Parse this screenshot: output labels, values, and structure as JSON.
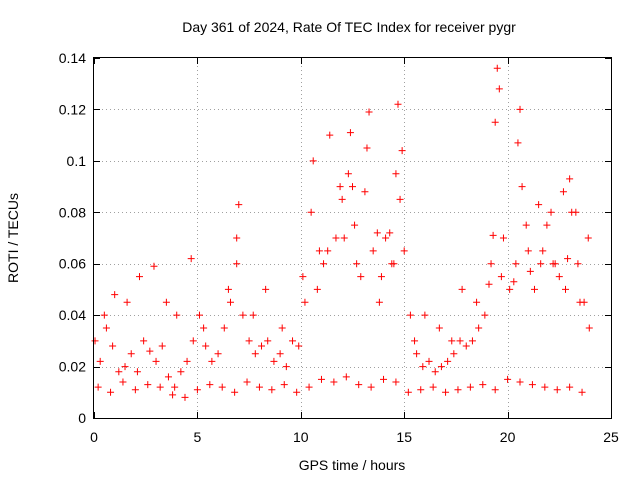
{
  "chart_data": {
    "type": "scatter",
    "title": "Day 361 of 2024, Rate Of TEC Index for receiver pygr",
    "xlabel": "GPS time / hours",
    "ylabel": "ROTI / TECUs",
    "xlim": [
      0,
      25
    ],
    "ylim": [
      0,
      0.14
    ],
    "xticks": [
      0,
      5,
      10,
      15,
      20,
      25
    ],
    "xtick_labels": [
      "0",
      "5",
      "10",
      "15",
      "20",
      "25"
    ],
    "yticks": [
      0,
      0.02,
      0.04,
      0.06,
      0.08,
      0.1,
      0.12,
      0.14
    ],
    "ytick_labels": [
      "0",
      "0.02",
      "0.04",
      "0.06",
      "0.08",
      "0.1",
      "0.12",
      "0.14"
    ],
    "grid": true,
    "marker": "+",
    "color": "#ff0000",
    "series": [
      {
        "name": "ROTI",
        "x": [
          0.05,
          0.3,
          0.6,
          0.9,
          1.2,
          1.5,
          1.8,
          2.1,
          2.4,
          2.7,
          3.0,
          3.3,
          3.6,
          3.9,
          4.2,
          4.5,
          4.8,
          5.1,
          5.4,
          5.7,
          6.0,
          6.3,
          6.6,
          6.9,
          7.0,
          7.2,
          7.5,
          7.8,
          8.1,
          8.4,
          8.7,
          9.0,
          9.3,
          9.6,
          9.9,
          10.2,
          10.5,
          10.6,
          10.8,
          11.1,
          11.4,
          11.7,
          12.0,
          12.3,
          12.4,
          12.6,
          12.9,
          13.2,
          13.3,
          13.5,
          13.8,
          14.1,
          14.4,
          14.6,
          14.7,
          14.8,
          15.0,
          15.3,
          15.6,
          15.9,
          16.2,
          16.5,
          16.8,
          17.1,
          17.4,
          17.7,
          18.0,
          18.3,
          18.6,
          18.9,
          19.2,
          19.4,
          19.5,
          19.6,
          19.8,
          20.1,
          20.4,
          20.5,
          20.6,
          20.7,
          21.0,
          21.3,
          21.6,
          21.9,
          22.2,
          22.5,
          22.8,
          23.0,
          23.1,
          23.4,
          23.7,
          23.95,
          0.2,
          0.8,
          1.4,
          2.0,
          2.6,
          3.2,
          3.8,
          4.4,
          5.0,
          5.6,
          6.2,
          6.8,
          7.4,
          8.0,
          8.6,
          9.2,
          9.8,
          10.4,
          11.0,
          11.6,
          12.2,
          12.8,
          13.4,
          14.0,
          14.6,
          15.2,
          15.8,
          16.4,
          17.0,
          17.6,
          18.2,
          18.8,
          19.4,
          20.0,
          20.6,
          21.2,
          21.8,
          22.4,
          23.0,
          23.6,
          0.5,
          1.6,
          2.9,
          4.7,
          6.9,
          8.3,
          10.9,
          11.9,
          12.5,
          13.1,
          13.7,
          14.3,
          14.9,
          16.0,
          17.8,
          19.3,
          20.9,
          21.5,
          22.1,
          22.7,
          23.3,
          23.9,
          1.0,
          2.2,
          3.5,
          4.0,
          5.3,
          6.5,
          7.7,
          9.1,
          10.1,
          11.3,
          12.1,
          12.7,
          13.9,
          14.5,
          15.5,
          16.7,
          17.3,
          18.5,
          19.1,
          19.7,
          20.3,
          21.1,
          21.7,
          22.3,
          22.9,
          23.5
        ],
        "y": [
          0.03,
          0.022,
          0.035,
          0.028,
          0.018,
          0.02,
          0.025,
          0.018,
          0.03,
          0.026,
          0.022,
          0.028,
          0.016,
          0.012,
          0.018,
          0.022,
          0.03,
          0.04,
          0.028,
          0.022,
          0.025,
          0.035,
          0.045,
          0.07,
          0.083,
          0.04,
          0.03,
          0.025,
          0.028,
          0.03,
          0.022,
          0.025,
          0.02,
          0.03,
          0.028,
          0.045,
          0.08,
          0.1,
          0.05,
          0.06,
          0.11,
          0.07,
          0.085,
          0.095,
          0.111,
          0.075,
          0.055,
          0.105,
          0.119,
          0.065,
          0.045,
          0.07,
          0.06,
          0.095,
          0.122,
          0.085,
          0.065,
          0.04,
          0.025,
          0.02,
          0.022,
          0.018,
          0.02,
          0.022,
          0.025,
          0.03,
          0.028,
          0.03,
          0.035,
          0.04,
          0.06,
          0.115,
          0.136,
          0.128,
          0.07,
          0.05,
          0.06,
          0.107,
          0.12,
          0.09,
          0.065,
          0.05,
          0.06,
          0.075,
          0.06,
          0.055,
          0.05,
          0.093,
          0.08,
          0.06,
          0.045,
          0.035,
          0.012,
          0.01,
          0.014,
          0.011,
          0.013,
          0.012,
          0.009,
          0.008,
          0.011,
          0.013,
          0.012,
          0.01,
          0.014,
          0.012,
          0.011,
          0.013,
          0.01,
          0.012,
          0.015,
          0.014,
          0.016,
          0.013,
          0.012,
          0.015,
          0.014,
          0.01,
          0.011,
          0.012,
          0.01,
          0.011,
          0.012,
          0.013,
          0.011,
          0.015,
          0.014,
          0.013,
          0.012,
          0.011,
          0.012,
          0.01,
          0.04,
          0.045,
          0.059,
          0.062,
          0.06,
          0.05,
          0.065,
          0.09,
          0.09,
          0.088,
          0.072,
          0.072,
          0.104,
          0.04,
          0.05,
          0.071,
          0.075,
          0.083,
          0.08,
          0.088,
          0.08,
          0.07,
          0.048,
          0.055,
          0.045,
          0.04,
          0.035,
          0.05,
          0.04,
          0.035,
          0.055,
          0.065,
          0.07,
          0.06,
          0.055,
          0.06,
          0.03,
          0.035,
          0.03,
          0.045,
          0.052,
          0.055,
          0.053,
          0.057,
          0.065,
          0.06,
          0.062,
          0.045
        ]
      }
    ]
  }
}
